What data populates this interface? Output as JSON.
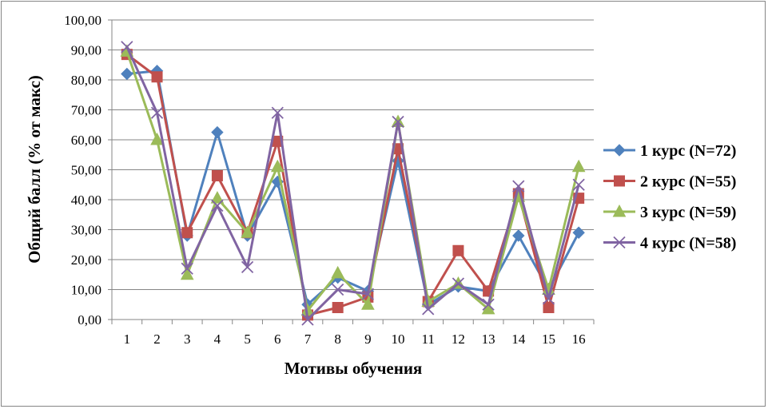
{
  "chart_data": {
    "type": "line",
    "title": "",
    "xlabel": "Мотивы обучения",
    "ylabel": "Общий балл (% от макс)",
    "ylim": [
      0,
      100
    ],
    "yticks": [
      "0,00",
      "10,00",
      "20,00",
      "30,00",
      "40,00",
      "50,00",
      "60,00",
      "70,00",
      "80,00",
      "90,00",
      "100,00"
    ],
    "categories": [
      "1",
      "2",
      "3",
      "4",
      "5",
      "6",
      "7",
      "8",
      "9",
      "10",
      "11",
      "12",
      "13",
      "14",
      "15",
      "16"
    ],
    "grid": true,
    "legend_position": "right",
    "series": [
      {
        "name": "1 курс (N=72)",
        "color": "#4F81BD",
        "marker": "diamond",
        "values": [
          82,
          83,
          28,
          62.5,
          28,
          46,
          5,
          14,
          9.5,
          53,
          5,
          11,
          9.5,
          28,
          10,
          29
        ]
      },
      {
        "name": "2 курс (N=55)",
        "color": "#C0504D",
        "marker": "square",
        "values": [
          88.5,
          81,
          29,
          48,
          29,
          59.5,
          1.5,
          4,
          7.5,
          57,
          6,
          23,
          9.5,
          42,
          4,
          40.5
        ]
      },
      {
        "name": "3 курс (N=59)",
        "color": "#9BBB59",
        "marker": "triangle",
        "values": [
          89.5,
          60,
          15,
          40.5,
          29,
          51,
          3,
          15.5,
          5,
          66,
          6,
          12,
          3.5,
          41,
          10,
          51
        ]
      },
      {
        "name": "4 курс (N=58)",
        "color": "#8064A2",
        "marker": "x",
        "values": [
          91,
          69,
          17,
          38,
          17.5,
          69,
          0,
          10,
          8.5,
          66,
          3.5,
          12,
          5,
          44.5,
          7,
          45
        ]
      }
    ]
  }
}
